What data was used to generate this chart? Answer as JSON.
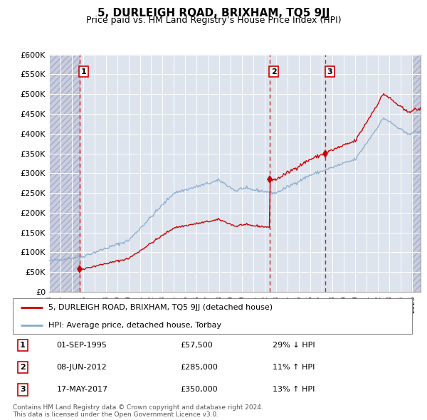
{
  "title": "5, DURLEIGH ROAD, BRIXHAM, TQ5 9JJ",
  "subtitle": "Price paid vs. HM Land Registry’s House Price Index (HPI)",
  "ylim": [
    0,
    600000
  ],
  "xlim_start": 1993.0,
  "xlim_end": 2025.75,
  "yticks": [
    0,
    50000,
    100000,
    150000,
    200000,
    250000,
    300000,
    350000,
    400000,
    450000,
    500000,
    550000,
    600000
  ],
  "ytick_labels": [
    "£0",
    "£50K",
    "£100K",
    "£150K",
    "£200K",
    "£250K",
    "£300K",
    "£350K",
    "£400K",
    "£450K",
    "£500K",
    "£550K",
    "£600K"
  ],
  "transactions": [
    {
      "num": 1,
      "date": "01-SEP-1995",
      "price": 57500,
      "pct": "29%",
      "dir": "↓",
      "year": 1995.67
    },
    {
      "num": 2,
      "date": "08-JUN-2012",
      "price": 285000,
      "pct": "11%",
      "dir": "↑",
      "year": 2012.44
    },
    {
      "num": 3,
      "date": "17-MAY-2017",
      "price": 350000,
      "pct": "13%",
      "dir": "↑",
      "year": 2017.37
    }
  ],
  "legend_property": "5, DURLEIGH ROAD, BRIXHAM, TQ5 9JJ (detached house)",
  "legend_hpi": "HPI: Average price, detached house, Torbay",
  "footer": "Contains HM Land Registry data © Crown copyright and database right 2024.\nThis data is licensed under the Open Government Licence v3.0.",
  "property_color": "#cc0000",
  "hpi_color": "#88aacc",
  "plot_bg": "#dde4ee",
  "hatch_bg": "#c8cedd"
}
